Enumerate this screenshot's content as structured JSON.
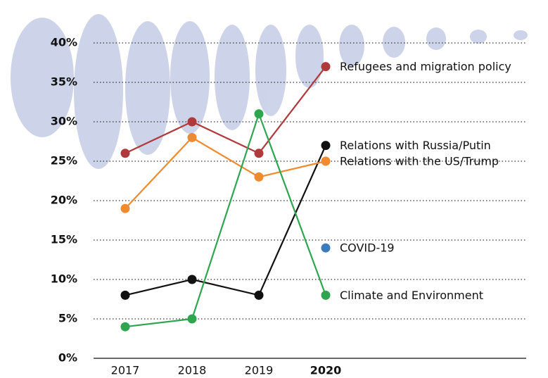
{
  "chart_data": {
    "type": "line",
    "categories": [
      "2017",
      "2018",
      "2019",
      "2020"
    ],
    "series": [
      {
        "name": "Refugees and migration policy",
        "color": "#b0393b",
        "values": [
          26,
          30,
          26,
          37
        ]
      },
      {
        "name": "Relations with Russia/Putin",
        "color": "#111111",
        "values": [
          8,
          10,
          8,
          27
        ]
      },
      {
        "name": "Relations with the US/Trump",
        "color": "#ef8a2f",
        "values": [
          19,
          28,
          23,
          25
        ]
      },
      {
        "name": "COVID-19",
        "color": "#3b7cc0",
        "values": [
          null,
          null,
          null,
          14
        ]
      },
      {
        "name": "Climate and Environment",
        "color": "#2ea650",
        "values": [
          4,
          5,
          31,
          8
        ]
      }
    ],
    "ylim": [
      0,
      40
    ],
    "yticks": [
      {
        "value": 0,
        "label": "0%"
      },
      {
        "value": 5,
        "label": "5%"
      },
      {
        "value": 10,
        "label": "10%"
      },
      {
        "value": 15,
        "label": "15%"
      },
      {
        "value": 20,
        "label": "20%"
      },
      {
        "value": 25,
        "label": "25%"
      },
      {
        "value": 30,
        "label": "30%"
      },
      {
        "value": 35,
        "label": "35%"
      },
      {
        "value": 40,
        "label": "40%"
      }
    ],
    "grid": true
  }
}
